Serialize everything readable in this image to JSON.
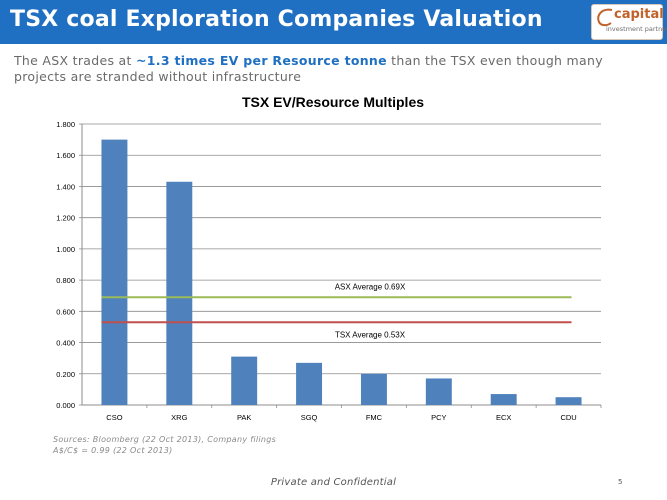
{
  "header": {
    "title": "TSX coal Exploration Companies Valuation",
    "logo_word": "capital",
    "logo_sub": "investment partners"
  },
  "subtitle": {
    "prefix": "The ASX trades at ",
    "highlight": "~1.3 times EV per Resource tonne",
    "suffix": " than the TSX even though many projects are stranded without infrastructure"
  },
  "chart_data": {
    "type": "bar",
    "title": "TSX EV/Resource Multiples",
    "xlabel": "",
    "ylabel": "",
    "categories": [
      "CSO",
      "XRG",
      "PAK",
      "SGQ",
      "FMC",
      "PCY",
      "ECX",
      "CDU"
    ],
    "values": [
      1.7,
      1.43,
      0.31,
      0.27,
      0.2,
      0.17,
      0.07,
      0.05
    ],
    "ylim": [
      0,
      1.8
    ],
    "yticks": [
      "0.000",
      "0.200",
      "0.400",
      "0.600",
      "0.800",
      "1.000",
      "1.200",
      "1.400",
      "1.600",
      "1.800"
    ],
    "grid": true,
    "bar_color": "#4f81bd",
    "reference_lines": [
      {
        "label": "ASX Average 0.69X",
        "value": 0.69,
        "color": "#9bbb59"
      },
      {
        "label": "TSX Average 0.53X",
        "value": 0.53,
        "color": "#c0504d"
      }
    ]
  },
  "sources": {
    "line1": "Sources: Bloomberg (22 Oct 2013), Company filings",
    "line2": "A$/C$ = 0.99 (22 Oct 2013)"
  },
  "footer": {
    "text": "Private and Confidential",
    "page": "5"
  }
}
